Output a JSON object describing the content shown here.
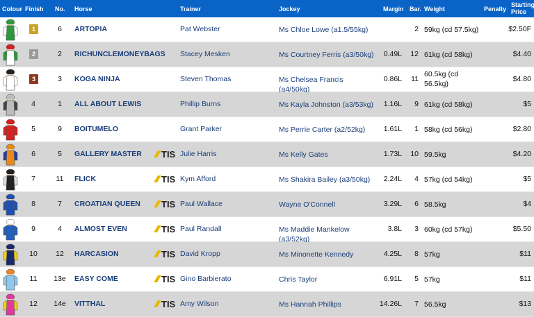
{
  "headers": {
    "colour": "Colour",
    "finish": "Finish",
    "no": "No.",
    "horse": "Horse",
    "trainer": "Trainer",
    "jockey": "Jockey",
    "margin": "Margin",
    "bar": "Bar.",
    "weight": "Weight",
    "penalty": "Penalty",
    "starting_price_1": "Starting",
    "starting_price_2": "Price"
  },
  "badge_colors": {
    "1": "#c9a227",
    "2": "#9a9a9a",
    "3": "#8a3a1a"
  },
  "tis_label": "TIS",
  "runners": [
    {
      "finish": "1",
      "no": "6",
      "horse": "ARTOPIA",
      "trainer": "Pat Webster",
      "jockey": "Ms Chloe Lowe (a1.5/55kg)",
      "margin": "",
      "bar": "2",
      "weight": "59kg (cd 57.5kg)",
      "price": "$2.50F",
      "tis": false,
      "silk_icon": "silk-green-white",
      "silk_body": "#2a9a3a",
      "silk_sleeve": "#ffffff",
      "silk_cap": "#2a9a3a"
    },
    {
      "finish": "2",
      "no": "2",
      "horse": "RICHUNCLEMONEYBAGS",
      "trainer": "Stacey Mesken",
      "jockey": "Ms Courtney Ferris (a3/50kg)",
      "margin": "0.49L",
      "bar": "12",
      "weight": "61kg (cd 58kg)",
      "price": "$4.40",
      "tis": false,
      "silk_icon": "silk-white-green-red",
      "silk_body": "#ffffff",
      "silk_sleeve": "#2a9a3a",
      "silk_cap": "#d02020"
    },
    {
      "finish": "3",
      "no": "3",
      "horse": "KOGA NINJA",
      "trainer": "Steven Thomas",
      "jockey": "Ms Chelsea Francis (a4/50kg)",
      "margin": "0.86L",
      "bar": "11",
      "weight": "60.5kg (cd 56.5kg)",
      "price": "$4.80",
      "tis": false,
      "silk_icon": "silk-white-magenta",
      "silk_body": "#ffffff",
      "silk_sleeve": "#ffffff",
      "silk_cap": "#222222"
    },
    {
      "finish": "4",
      "no": "1",
      "horse": "ALL ABOUT LEWIS",
      "trainer": "Phillip Burns",
      "jockey": "Ms Kayla Johnston (a3/53kg)",
      "margin": "1.16L",
      "bar": "9",
      "weight": "61kg (cd 58kg)",
      "price": "$5",
      "tis": false,
      "silk_icon": "silk-grey-black",
      "silk_body": "#bdbdbd",
      "silk_sleeve": "#444444",
      "silk_cap": "#bdbdbd"
    },
    {
      "finish": "5",
      "no": "9",
      "horse": "BOITUMELO",
      "trainer": "Grant Parker",
      "jockey": "Ms Perrie Carter (a2/52kg)",
      "margin": "1.61L",
      "bar": "1",
      "weight": "58kg (cd 56kg)",
      "price": "$2.80",
      "tis": false,
      "silk_icon": "silk-red-white",
      "silk_body": "#d82020",
      "silk_sleeve": "#d82020",
      "silk_cap": "#d82020"
    },
    {
      "finish": "6",
      "no": "5",
      "horse": "GALLERY MASTER",
      "trainer": "Julie Harris",
      "jockey": "Ms Kelly Gates",
      "margin": "1.73L",
      "bar": "10",
      "weight": "59.5kg",
      "price": "$4.20",
      "tis": true,
      "silk_icon": "silk-orange-blue-stripes",
      "silk_body": "#e88a1a",
      "silk_sleeve": "#2a3a9a",
      "silk_cap": "#e88a1a"
    },
    {
      "finish": "7",
      "no": "11",
      "horse": "FLICK",
      "trainer": "Kym Afford",
      "jockey": "Ms Shakira Bailey (a3/50kg)",
      "margin": "2.24L",
      "bar": "4",
      "weight": "57kg (cd 54kg)",
      "price": "$5",
      "tis": true,
      "silk_icon": "silk-black-white-sleeves",
      "silk_body": "#222222",
      "silk_sleeve": "#dddddd",
      "silk_cap": "#222222"
    },
    {
      "finish": "8",
      "no": "7",
      "horse": "CROATIAN QUEEN",
      "trainer": "Paul Wallace",
      "jockey": "Wayne O'Connell",
      "margin": "3.29L",
      "bar": "6",
      "weight": "58.5kg",
      "price": "$4",
      "tis": true,
      "silk_icon": "silk-royal-blue",
      "silk_body": "#1f4fb0",
      "silk_sleeve": "#1f4fb0",
      "silk_cap": "#1f4fb0"
    },
    {
      "finish": "9",
      "no": "4",
      "horse": "ALMOST EVEN",
      "trainer": "Paul Randall",
      "jockey": "Ms Maddie Mankelow (a3/52kg)",
      "margin": "3.8L",
      "bar": "3",
      "weight": "60kg (cd 57kg)",
      "price": "$5.50",
      "tis": true,
      "silk_icon": "silk-blue-white-star",
      "silk_body": "#1f5fc0",
      "silk_sleeve": "#1f5fc0",
      "silk_cap": "#ffffff"
    },
    {
      "finish": "10",
      "no": "12",
      "horse": "HARCASION",
      "trainer": "David Kropp",
      "jockey": "Ms Minonette Kennedy",
      "margin": "4.25L",
      "bar": "8",
      "weight": "57kg",
      "price": "$11",
      "tis": true,
      "silk_icon": "silk-navy-yellow",
      "silk_body": "#1a2a6a",
      "silk_sleeve": "#f0d020",
      "silk_cap": "#1a2a6a"
    },
    {
      "finish": "11",
      "no": "13e",
      "horse": "EASY COME",
      "trainer": "Gino Barbierato",
      "jockey": "Chris Taylor",
      "margin": "6.91L",
      "bar": "5",
      "weight": "57kg",
      "price": "$11",
      "tis": true,
      "silk_icon": "silk-lightblue-orange",
      "silk_body": "#8ec8ee",
      "silk_sleeve": "#8ec8ee",
      "silk_cap": "#e8862a"
    },
    {
      "finish": "12",
      "no": "14e",
      "horse": "VITTHAL",
      "trainer": "Amy Wilson",
      "jockey": "Ms Hannah Phillips",
      "margin": "14.26L",
      "bar": "7",
      "weight": "56.5kg",
      "price": "$13",
      "tis": true,
      "silk_icon": "silk-pink-yellow",
      "silk_body": "#e03aa0",
      "silk_sleeve": "#f0d020",
      "silk_cap": "#e03aa0"
    }
  ]
}
